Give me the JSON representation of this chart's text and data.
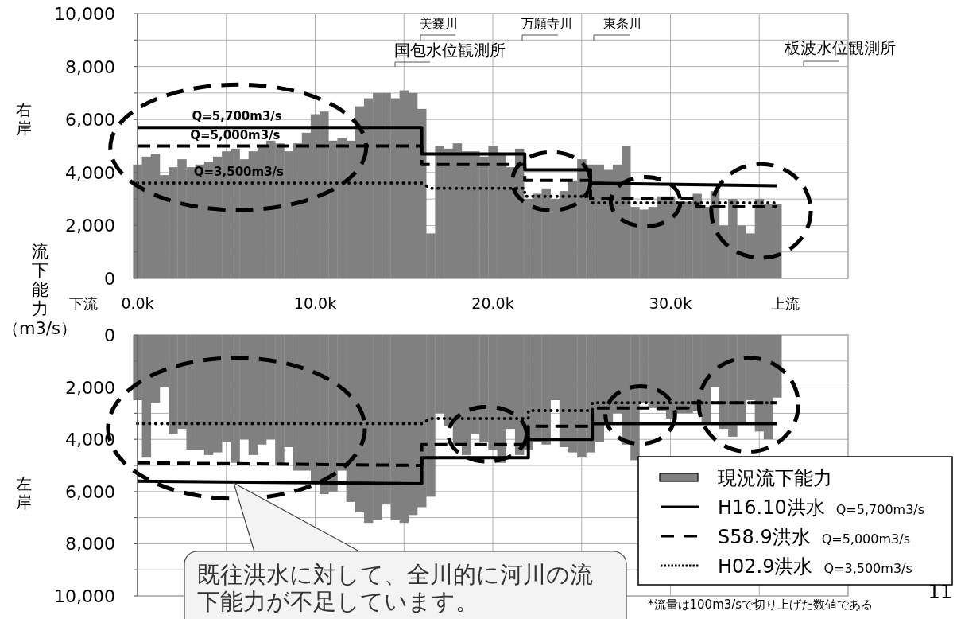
{
  "chart_data": [
    {
      "type": "bar",
      "ylabel": "流下能力（m3/s）",
      "xlim": [
        0,
        40
      ],
      "ylim": [
        0,
        10000
      ],
      "grid": true,
      "xticks": [
        {
          "value": 0,
          "label": "0.0k"
        },
        {
          "value": 5,
          "label": null
        },
        {
          "value": 10,
          "label": "10.0k"
        },
        {
          "value": 15,
          "label": null
        },
        {
          "value": 20,
          "label": "20.0k"
        },
        {
          "value": 25,
          "label": null
        },
        {
          "value": 30,
          "label": "30.0k"
        },
        {
          "value": 35,
          "label": null
        },
        {
          "value": 40,
          "label": null
        }
      ],
      "yticks": [
        0,
        {
          "value": 1000,
          "label": null
        },
        {
          "value": 2000,
          "label": "2,000"
        },
        {
          "value": 3000,
          "label": null
        },
        {
          "value": 4000,
          "label": "4,000"
        },
        {
          "value": 5000,
          "label": null
        },
        {
          "value": 6000,
          "label": "6,000"
        },
        {
          "value": 7000,
          "label": null
        },
        {
          "value": 8000,
          "label": "8,000"
        },
        {
          "value": 9000,
          "label": null
        },
        {
          "value": 10000,
          "label": "10,000"
        }
      ],
      "x": [
        0,
        0.5,
        1,
        1.5,
        2,
        2.5,
        3,
        3.5,
        4,
        4.5,
        5,
        5.5,
        6,
        6.5,
        7,
        7.5,
        8,
        8.5,
        9,
        9.5,
        10,
        10.5,
        11,
        11.5,
        12,
        12.5,
        13,
        13.5,
        14,
        14.5,
        15,
        15.5,
        16,
        16.5,
        17,
        17.5,
        18,
        18.5,
        19,
        19.5,
        20,
        20.5,
        21,
        21.5,
        22,
        22.5,
        23,
        23.5,
        24,
        24.5,
        25,
        25.5,
        26,
        26.5,
        27,
        27.5,
        28,
        28.5,
        29,
        29.5,
        30,
        30.5,
        31,
        31.5,
        32,
        32.5,
        33,
        33.5,
        34,
        34.5,
        35,
        35.5,
        36
      ],
      "series": [
        {
          "color": "#808080",
          "values": [
            4300,
            4600,
            4700,
            3900,
            4200,
            4500,
            4200,
            4300,
            4400,
            4600,
            4800,
            4900,
            4500,
            4800,
            5000,
            5200,
            5100,
            4800,
            5100,
            5500,
            6200,
            6300,
            5200,
            5300,
            5200,
            6500,
            6800,
            7000,
            7000,
            6800,
            7100,
            7000,
            6400,
            1700,
            5000,
            4900,
            5100,
            4800,
            4800,
            4600,
            5000,
            4700,
            4200,
            4900,
            3000,
            3200,
            3400,
            3000,
            3300,
            3700,
            4500,
            4300,
            4300,
            4100,
            4300,
            5000,
            2700,
            2600,
            2700,
            3100,
            3100,
            2900,
            2900,
            3200,
            2700,
            3300,
            2000,
            3000,
            2000,
            1700,
            3000,
            2800,
            2800
          ]
        },
        {
          "type": "line",
          "color": "#000000",
          "line_style": "solid",
          "x": [
            0,
            16,
            16,
            21.8,
            21.8,
            25.5,
            25.5,
            36
          ],
          "values": [
            5700,
            5700,
            4700,
            4700,
            4100,
            4100,
            3600,
            3500
          ]
        },
        {
          "type": "line",
          "color": "#000000",
          "line_style": "dashed",
          "x": [
            0,
            16,
            16,
            21.8,
            21.8,
            25.5,
            25.5,
            31.5,
            31.5,
            36
          ],
          "values": [
            5000,
            5000,
            4300,
            4300,
            3700,
            3700,
            3000,
            3000,
            2700,
            2700
          ]
        },
        {
          "type": "line",
          "color": "#000000",
          "line_style": "dotted",
          "x": [
            0,
            16,
            16.5,
            21.8,
            21.8,
            25.5,
            25.5,
            36
          ],
          "values": [
            3600,
            3600,
            3400,
            3400,
            3100,
            3100,
            2850,
            2850
          ]
        }
      ],
      "annotations": [
        {
          "text": "Q=5,700m3/s",
          "x": 5.6,
          "y": 5700
        },
        {
          "text": "Q=5,000m3/s",
          "x": 5.5,
          "y": 5000
        },
        {
          "text": "Q=3,500m3/s",
          "x": 5.7,
          "y": 3600
        },
        "右岸",
        "下流",
        "上流",
        "美嚢川",
        "国包水位観測所",
        "万願寺川",
        "東条川",
        "板波水位観測所"
      ]
    },
    {
      "type": "bar",
      "xlim": [
        0,
        40
      ],
      "ylim": [
        10000,
        0
      ],
      "grid": true,
      "tick_labels": "y",
      "legend": "bottom right",
      "xticks": [
        0,
        5,
        10,
        15,
        20,
        25,
        30,
        35,
        40
      ],
      "yticks": [
        0,
        {
          "value": 1000,
          "label": null
        },
        {
          "value": 2000,
          "label": "2,000"
        },
        {
          "value": 3000,
          "label": null
        },
        {
          "value": 4000,
          "label": "4,000"
        },
        {
          "value": 5000,
          "label": null
        },
        {
          "value": 6000,
          "label": "6,000"
        },
        {
          "value": 7000,
          "label": null
        },
        {
          "value": 8000,
          "label": "8,000"
        },
        {
          "value": 9000,
          "label": null
        },
        {
          "value": 10000,
          "label": "10,000"
        }
      ],
      "x": [
        0,
        0.5,
        1,
        1.5,
        2,
        2.5,
        3,
        3.5,
        4,
        4.5,
        5,
        5.5,
        6,
        6.5,
        7,
        7.5,
        8,
        8.5,
        9,
        9.5,
        10,
        10.5,
        11,
        11.5,
        12,
        12.5,
        13,
        13.5,
        14,
        14.5,
        15,
        15.5,
        16,
        16.5,
        17,
        17.5,
        18,
        18.5,
        19,
        19.5,
        20,
        20.5,
        21,
        21.5,
        22,
        22.5,
        23,
        23.5,
        24,
        24.5,
        25,
        25.5,
        26,
        26.5,
        27,
        27.5,
        28,
        28.5,
        29,
        29.5,
        30,
        30.5,
        31,
        31.5,
        32,
        32.5,
        33,
        33.5,
        34,
        34.5,
        35,
        35.5,
        36
      ],
      "series": [
        {
          "name": "現況流下能力",
          "color": "#808080",
          "values": [
            2500,
            4700,
            2600,
            2000,
            3800,
            3600,
            4400,
            4400,
            4600,
            4500,
            4100,
            4900,
            4000,
            4600,
            4200,
            4000,
            5000,
            4300,
            5200,
            5200,
            5700,
            6100,
            6000,
            5200,
            6400,
            6800,
            7200,
            7100,
            6500,
            7100,
            7200,
            6900,
            6600,
            6200,
            3000,
            3500,
            4200,
            4600,
            3800,
            4100,
            4400,
            4900,
            3600,
            4600,
            4400,
            4100,
            4200,
            2500,
            4300,
            4500,
            4700,
            4500,
            4100,
            3400,
            3000,
            4200,
            4800,
            2600,
            2800,
            2900,
            3200,
            3000,
            3000,
            2900,
            3400,
            2000,
            3600,
            3900,
            3400,
            2500,
            3700,
            4000,
            2400
          ]
        },
        {
          "type": "line",
          "name": "H16.10洪水 Q=5,700m3/s",
          "color": "#000000",
          "line_style": "solid",
          "x": [
            0,
            16,
            16,
            22,
            22,
            25.6,
            25.6,
            36
          ],
          "values": [
            5600,
            5700,
            4700,
            4700,
            4000,
            4000,
            3400,
            3400
          ]
        },
        {
          "type": "line",
          "name": "S58.9洪水 Q=5,000m3/s",
          "color": "#000000",
          "line_style": "dashed",
          "x": [
            0,
            16,
            16,
            22,
            22,
            25.6,
            25.6,
            31,
            31,
            36
          ],
          "values": [
            4900,
            5000,
            4200,
            4200,
            3500,
            3500,
            2800,
            2800,
            2600,
            2600
          ]
        },
        {
          "type": "line",
          "name": "H02.9洪水 Q=3,500m3/s",
          "color": "#000000",
          "line_style": "dotted",
          "x": [
            0,
            16,
            16.5,
            22,
            22,
            25.6,
            25.6,
            36
          ],
          "values": [
            3400,
            3400,
            3200,
            3200,
            2900,
            2900,
            2600,
            2600
          ]
        }
      ],
      "annotations": [
        "左岸",
        "既往洪水に対して、全川的に河川の流下能力が不足しています。",
        "*流量は100m3/sで切り上げた数値である",
        "11"
      ]
    }
  ]
}
